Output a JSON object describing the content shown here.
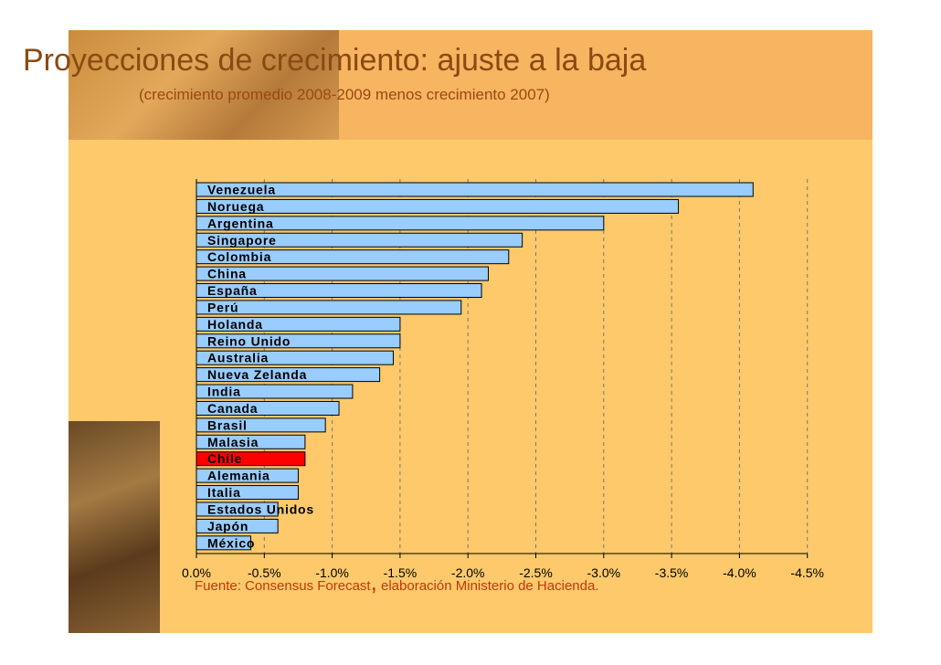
{
  "title": "Proyecciones de crecimiento: ajuste a la baja",
  "subtitle": "(crecimiento promedio 2008-2009 menos crecimiento 2007)",
  "source": {
    "part1": "Fuente: Consensus Forecast",
    "comma": ",",
    "part2": " elaboración Ministerio de Hacienda."
  },
  "colors": {
    "bar": "#99ccff",
    "highlight_bar": "#ff0000",
    "background": "#fdc96b",
    "title": "#8a4a12",
    "source": "#c0390b"
  },
  "chart_data": {
    "type": "bar",
    "orientation": "horizontal",
    "categories": [
      "Venezuela",
      "Noruega",
      "Argentina",
      "Singapore",
      "Colombia",
      "China",
      "España",
      "Perú",
      "Holanda",
      "Reino Unido",
      "Australia",
      "Nueva Zelanda",
      "India",
      "Canada",
      "Brasil",
      "Malasia",
      "Chile",
      "Alemania",
      "Italia",
      "Estados Unidos",
      "Japón",
      "México"
    ],
    "values": [
      -4.1,
      -3.55,
      -3.0,
      -2.4,
      -2.3,
      -2.15,
      -2.1,
      -1.95,
      -1.5,
      -1.5,
      -1.45,
      -1.35,
      -1.15,
      -1.05,
      -0.95,
      -0.8,
      -0.8,
      -0.75,
      -0.75,
      -0.6,
      -0.6,
      -0.4
    ],
    "highlight": "Chile",
    "xlim": [
      0.0,
      -4.5
    ],
    "xticks": [
      0.0,
      -0.5,
      -1.0,
      -1.5,
      -2.0,
      -2.5,
      -3.0,
      -3.5,
      -4.0,
      -4.5
    ],
    "xtick_labels": [
      "0.0%",
      "-0.5%",
      "-1.0%",
      "-1.5%",
      "-2.0%",
      "-2.5%",
      "-3.0%",
      "-3.5%",
      "-4.0%",
      "-4.5%"
    ],
    "grid": "vertical dashed"
  }
}
